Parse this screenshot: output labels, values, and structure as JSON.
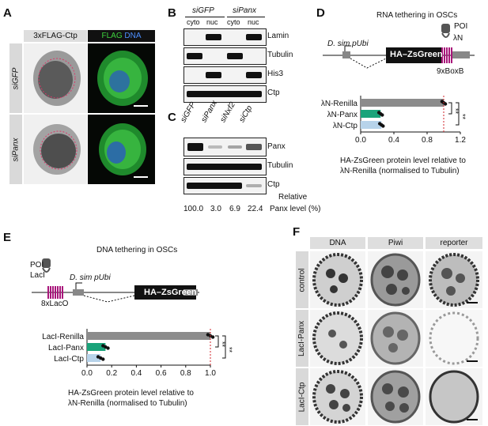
{
  "panel_labels": {
    "A": "A",
    "B": "B",
    "C": "C",
    "D": "D",
    "E": "E",
    "F": "F"
  },
  "panel_a": {
    "header_ctp": "3xFLAG-Ctp",
    "header_flag": "FLAG",
    "header_dna": "DNA",
    "row_sigfp": "siGFP",
    "row_sipanx": "siPanx"
  },
  "panel_b": {
    "group_sigfp": "siGFP",
    "group_sipanx": "siPanx",
    "col_cyto_1": "cyto",
    "col_nuc_1": "nuc",
    "col_cyto_2": "cyto",
    "col_nuc_2": "nuc",
    "blots": [
      "Lamin",
      "Tubulin",
      "His3",
      "Ctp"
    ]
  },
  "panel_c": {
    "lanes": [
      "siGFP",
      "siPanx",
      "siNxf2",
      "siCtp"
    ],
    "blots": [
      "Panx",
      "Tubulin",
      "Ctp"
    ],
    "levels": [
      "100.0",
      "3.0",
      "6.9",
      "22.4"
    ],
    "relative_label_1": "Relative",
    "relative_label_2": "Panx level (%)"
  },
  "panel_d": {
    "title": "RNA tethering in OSCs",
    "promoter": "D. sim pUbi",
    "reporter": "HA–ZsGreen",
    "boxb": "9xBoxB",
    "poi": "POI",
    "lambda": "λN",
    "sig1": "**",
    "sig2": "**",
    "xlabel_1": "HA-ZsGreen protein level relative to",
    "xlabel_2": "λN-Renilla (normalised to Tubulin)"
  },
  "panel_e": {
    "title": "DNA tethering in OSCs",
    "promoter": "D. sim pUbi",
    "reporter": "HA–ZsGreen",
    "laco": "8xLacO",
    "poi": "POI",
    "laci": "LacI",
    "sig1": "**",
    "sig2": "**",
    "xlabel_1": "HA-ZsGreen protein level relative to",
    "xlabel_2": "λN-Renilla (normalised to Tubulin)"
  },
  "panel_f": {
    "cols": [
      "DNA",
      "Piwi",
      "reporter"
    ],
    "rows": [
      "control",
      "LacI-Panx",
      "LacI-Ctp"
    ]
  },
  "chart_data": [
    {
      "type": "bar",
      "orientation": "horizontal",
      "categories": [
        "λN-Renilla",
        "λN-Panx",
        "λN-Ctp"
      ],
      "values": [
        1.0,
        0.24,
        0.25
      ],
      "colors": [
        "#8c8c8c",
        "#1aa37a",
        "#b7d3ea"
      ],
      "xlim": [
        0,
        1.2
      ],
      "xticks": [
        "0.0",
        "0.4",
        "0.8",
        "1.2"
      ],
      "reference_line": 1.0
    },
    {
      "type": "bar",
      "orientation": "horizontal",
      "categories": [
        "LacI-Renilla",
        "LacI-Panx",
        "LacI-Ctp"
      ],
      "values": [
        1.0,
        0.15,
        0.11
      ],
      "colors": [
        "#8c8c8c",
        "#1aa37a",
        "#b7d3ea"
      ],
      "xlim": [
        0,
        1.0
      ],
      "xticks": [
        "0.0",
        "0.2",
        "0.4",
        "0.6",
        "0.8",
        "1.0"
      ],
      "reference_line": 1.0
    }
  ]
}
